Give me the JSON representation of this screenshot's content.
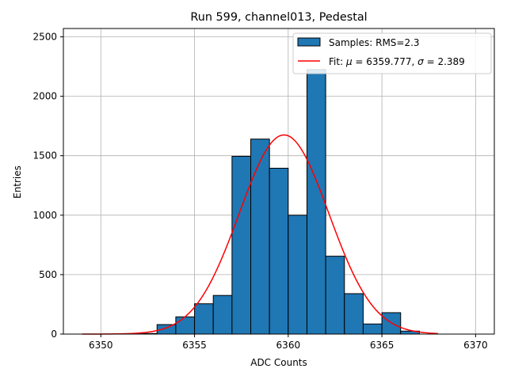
{
  "chart_data": {
    "type": "bar",
    "title": "Run 599, channel013, Pedestal",
    "xlabel": "ADC Counts",
    "ylabel": "Entries",
    "xlim": [
      6348.0,
      6371.0
    ],
    "ylim": [
      0,
      2570
    ],
    "xticks": [
      6350,
      6355,
      6360,
      6365,
      6370
    ],
    "yticks": [
      0,
      500,
      1000,
      1500,
      2000,
      2500
    ],
    "grid": true,
    "legend_position": "top-right",
    "histogram": {
      "name": "Samples: RMS=2.3",
      "color": "#1f77b4",
      "bin_edges": [
        6352,
        6353,
        6354,
        6355,
        6356,
        6357,
        6358,
        6359,
        6360,
        6361,
        6362,
        6363,
        6364,
        6365,
        6366,
        6367
      ],
      "values": [
        5,
        80,
        145,
        255,
        325,
        1495,
        1640,
        1395,
        1000,
        2225,
        655,
        340,
        85,
        180,
        25
      ]
    },
    "fit": {
      "name": "Fit: μ = 6359.777, σ = 2.389",
      "label_prefix": "Fit: ",
      "mu_symbol": "μ",
      "mu_text": " = 6359.777, ",
      "sigma_symbol": "σ",
      "sigma_text": " = 2.389",
      "color": "#ff0000",
      "mu": 6359.777,
      "sigma": 2.389,
      "amplitude": 1675,
      "x_range": [
        6349,
        6368
      ]
    }
  }
}
